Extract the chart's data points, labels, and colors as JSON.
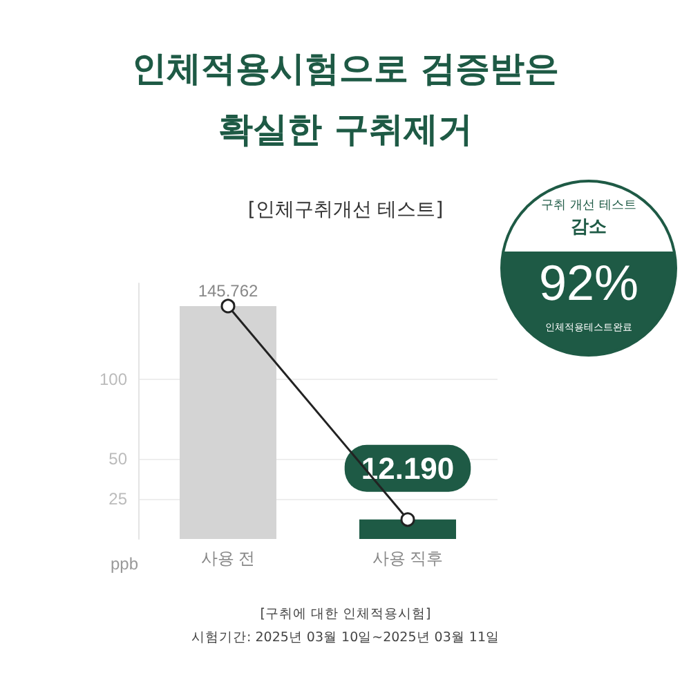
{
  "chart_data": {
    "type": "bar",
    "title": "인체적용시험으로 검증받은\n확실한 구취제거",
    "subtitle": "[인체구취개선 테스트]",
    "ylabel": "ppb",
    "categories": [
      "사용 전",
      "사용 직후"
    ],
    "series": [
      {
        "colors": [
          "#d4d4d4",
          "#1e5a45"
        ],
        "values": [
          145.762,
          12.19
        ],
        "value_labels": [
          "145.762",
          "12.190"
        ]
      },
      {
        "type": "line",
        "color": "#222222",
        "values": [
          145.762,
          12.19
        ]
      }
    ],
    "marker": "circle",
    "ylim": [
      0,
      160
    ],
    "yticks": [
      25,
      50,
      100
    ],
    "grid": "y",
    "annotations": [
      "구취 개선 테스트",
      "감소",
      "92%",
      "인체적용테스트완료",
      "[구취에 대한 인체적용시험]",
      "시험기간: 2025년 03월 10일~2025년 03월 11일"
    ]
  }
}
